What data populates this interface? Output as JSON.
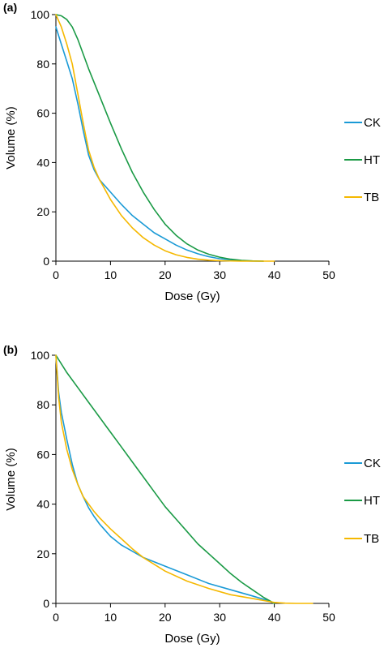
{
  "chart_data": [
    {
      "panel_label": "(a)",
      "type": "line",
      "xlabel": "Dose (Gy)",
      "ylabel": "Volume (%)",
      "xlim": [
        0,
        50
      ],
      "ylim": [
        0,
        100
      ],
      "xticks": [
        0,
        10,
        20,
        30,
        40,
        50
      ],
      "yticks": [
        0,
        20,
        40,
        60,
        80,
        100
      ],
      "grid": false,
      "legend_position": "right",
      "series": [
        {
          "name": "CK",
          "color": "#1a9ad6",
          "points": [
            [
              0,
              95
            ],
            [
              1,
              88
            ],
            [
              2,
              81
            ],
            [
              3,
              74
            ],
            [
              4,
              64
            ],
            [
              5,
              53
            ],
            [
              6,
              43
            ],
            [
              7,
              37
            ],
            [
              8,
              33
            ],
            [
              10,
              28
            ],
            [
              12,
              23
            ],
            [
              14,
              18.5
            ],
            [
              16,
              15
            ],
            [
              18,
              11.5
            ],
            [
              20,
              9
            ],
            [
              22,
              6.5
            ],
            [
              24,
              4.5
            ],
            [
              26,
              3
            ],
            [
              28,
              1.8
            ],
            [
              30,
              1
            ],
            [
              32,
              0.5
            ],
            [
              34,
              0.2
            ],
            [
              36,
              0
            ],
            [
              38,
              0
            ]
          ]
        },
        {
          "name": "HT",
          "color": "#1a9a45",
          "points": [
            [
              0,
              100
            ],
            [
              1,
              99.5
            ],
            [
              2,
              98
            ],
            [
              3,
              95
            ],
            [
              4,
              90
            ],
            [
              5,
              84
            ],
            [
              6,
              78
            ],
            [
              8,
              67
            ],
            [
              10,
              56
            ],
            [
              12,
              45.5
            ],
            [
              14,
              36
            ],
            [
              16,
              28
            ],
            [
              18,
              21
            ],
            [
              20,
              15
            ],
            [
              22,
              10.5
            ],
            [
              24,
              7
            ],
            [
              26,
              4.5
            ],
            [
              28,
              2.8
            ],
            [
              30,
              1.6
            ],
            [
              32,
              0.8
            ],
            [
              34,
              0.3
            ],
            [
              36,
              0.1
            ],
            [
              38,
              0
            ]
          ]
        },
        {
          "name": "TB",
          "color": "#f5b800",
          "points": [
            [
              0,
              100
            ],
            [
              1,
              95
            ],
            [
              2,
              88
            ],
            [
              3,
              80
            ],
            [
              4,
              68
            ],
            [
              5,
              56
            ],
            [
              6,
              45
            ],
            [
              7,
              38
            ],
            [
              8,
              33
            ],
            [
              9,
              29
            ],
            [
              10,
              25
            ],
            [
              12,
              18.5
            ],
            [
              14,
              13.5
            ],
            [
              16,
              9.5
            ],
            [
              18,
              6.5
            ],
            [
              20,
              4.2
            ],
            [
              22,
              2.6
            ],
            [
              24,
              1.5
            ],
            [
              26,
              0.8
            ],
            [
              28,
              0.4
            ],
            [
              30,
              0.2
            ],
            [
              34,
              0
            ],
            [
              40,
              0
            ]
          ]
        }
      ]
    },
    {
      "panel_label": "(b)",
      "type": "line",
      "xlabel": "Dose (Gy)",
      "ylabel": "Volume (%)",
      "xlim": [
        0,
        50
      ],
      "ylim": [
        0,
        100
      ],
      "xticks": [
        0,
        10,
        20,
        30,
        40,
        50
      ],
      "yticks": [
        0,
        20,
        40,
        60,
        80,
        100
      ],
      "grid": false,
      "legend_position": "right",
      "series": [
        {
          "name": "CK",
          "color": "#1a9ad6",
          "points": [
            [
              0,
              100
            ],
            [
              0.5,
              85
            ],
            [
              1,
              77
            ],
            [
              2,
              66
            ],
            [
              3,
              56
            ],
            [
              4,
              48
            ],
            [
              5,
              43
            ],
            [
              6,
              38.5
            ],
            [
              7,
              35
            ],
            [
              8,
              32
            ],
            [
              10,
              27
            ],
            [
              12,
              23.5
            ],
            [
              14,
              21
            ],
            [
              16,
              18.5
            ],
            [
              20,
              15
            ],
            [
              24,
              11.5
            ],
            [
              28,
              8
            ],
            [
              32,
              5.5
            ],
            [
              36,
              3
            ],
            [
              39,
              1
            ],
            [
              40,
              0
            ]
          ]
        },
        {
          "name": "HT",
          "color": "#1a9a45",
          "points": [
            [
              0,
              100
            ],
            [
              2,
              93
            ],
            [
              4,
              87
            ],
            [
              6,
              81
            ],
            [
              8,
              75
            ],
            [
              10,
              69
            ],
            [
              12,
              63
            ],
            [
              14,
              57
            ],
            [
              16,
              51
            ],
            [
              18,
              45
            ],
            [
              20,
              39
            ],
            [
              22,
              34
            ],
            [
              24,
              29
            ],
            [
              26,
              24
            ],
            [
              28,
              20
            ],
            [
              30,
              16
            ],
            [
              32,
              12
            ],
            [
              34,
              8.5
            ],
            [
              36,
              5.5
            ],
            [
              38,
              2.5
            ],
            [
              40,
              0
            ]
          ]
        },
        {
          "name": "TB",
          "color": "#f5b800",
          "points": [
            [
              0,
              100
            ],
            [
              0.5,
              83
            ],
            [
              1,
              73
            ],
            [
              2,
              62
            ],
            [
              3,
              54
            ],
            [
              4,
              48
            ],
            [
              5,
              43
            ],
            [
              6,
              40
            ],
            [
              7,
              37
            ],
            [
              8,
              34.5
            ],
            [
              10,
              30
            ],
            [
              12,
              26
            ],
            [
              14,
              22
            ],
            [
              16,
              18.5
            ],
            [
              20,
              13
            ],
            [
              24,
              9
            ],
            [
              28,
              6
            ],
            [
              32,
              3.5
            ],
            [
              36,
              2
            ],
            [
              39,
              0.8
            ],
            [
              40,
              0.4
            ],
            [
              42,
              0.1
            ],
            [
              44,
              0
            ],
            [
              47,
              0
            ]
          ]
        }
      ]
    }
  ]
}
